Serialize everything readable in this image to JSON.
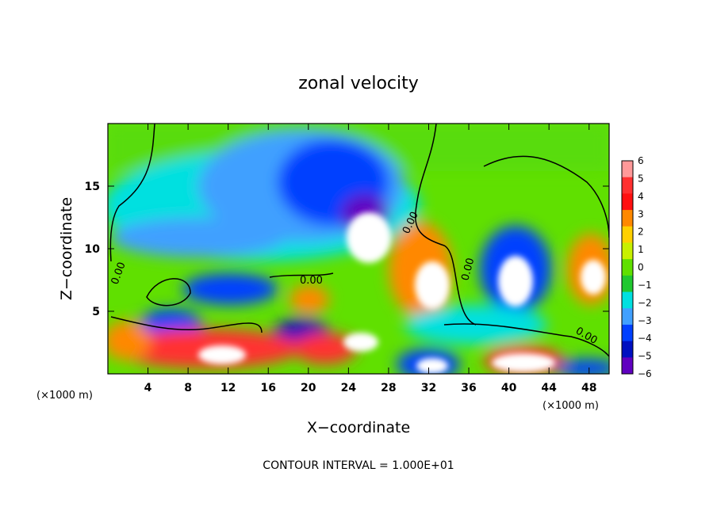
{
  "chart_data": {
    "type": "heatmap",
    "title": "zonal velocity",
    "xlabel": "X−coordinate",
    "ylabel": "Z−coordinate",
    "x_unit_left": "(×1000 m)",
    "x_unit_right": "(×1000 m)",
    "xlim": [
      0,
      50
    ],
    "ylim": [
      0,
      20
    ],
    "x_ticks": [
      4,
      8,
      12,
      16,
      20,
      24,
      28,
      32,
      36,
      40,
      44,
      48
    ],
    "y_ticks": [
      5,
      10,
      15
    ],
    "colorbar": {
      "min": -6,
      "max": 6,
      "ticks": [
        "6",
        "5",
        "4",
        "3",
        "2",
        "1",
        "0",
        "−1",
        "−2",
        "−3",
        "−4",
        "−5",
        "−6"
      ],
      "colors": [
        "#ff9999",
        "#ff3030",
        "#ff1010",
        "#ff8800",
        "#ffd000",
        "#c8f000",
        "#60e000",
        "#20c830",
        "#00e0e0",
        "#40a0ff",
        "#0040ff",
        "#0010c0",
        "#6000c0"
      ]
    },
    "contour_labels": [
      "0.00",
      "0.00",
      "0.00",
      "0.00",
      "0.00"
    ],
    "footnote": "CONTOUR INTERVAL = 1.000E+01"
  }
}
